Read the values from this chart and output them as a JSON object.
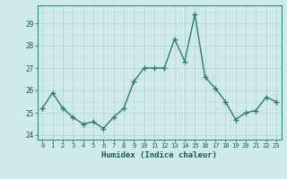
{
  "x": [
    0,
    1,
    2,
    3,
    4,
    5,
    6,
    7,
    8,
    9,
    10,
    11,
    12,
    13,
    14,
    15,
    16,
    17,
    18,
    19,
    20,
    21,
    22,
    23
  ],
  "y": [
    25.2,
    25.9,
    25.2,
    24.8,
    24.5,
    24.6,
    24.3,
    24.8,
    25.2,
    26.4,
    27.0,
    27.0,
    27.0,
    28.3,
    27.3,
    29.4,
    26.6,
    26.1,
    25.5,
    24.7,
    25.0,
    25.1,
    25.7,
    25.5
  ],
  "line_color": "#2e7d6e",
  "marker": "+",
  "marker_size": 4,
  "bg_color": "#ceeaea",
  "grid_color": "#b8d8d5",
  "xlabel": "Humidex (Indice chaleur)",
  "ylim": [
    23.8,
    29.8
  ],
  "xlim": [
    -0.5,
    23.5
  ],
  "yticks": [
    24,
    25,
    26,
    27,
    28,
    29
  ],
  "xtick_labels": [
    "0",
    "1",
    "2",
    "3",
    "4",
    "5",
    "6",
    "7",
    "8",
    "9",
    "10",
    "11",
    "12",
    "13",
    "14",
    "15",
    "16",
    "17",
    "18",
    "19",
    "20",
    "21",
    "22",
    "23"
  ],
  "spine_color": "#3a8a78",
  "label_color": "#1a5a50",
  "linewidth": 1.0
}
